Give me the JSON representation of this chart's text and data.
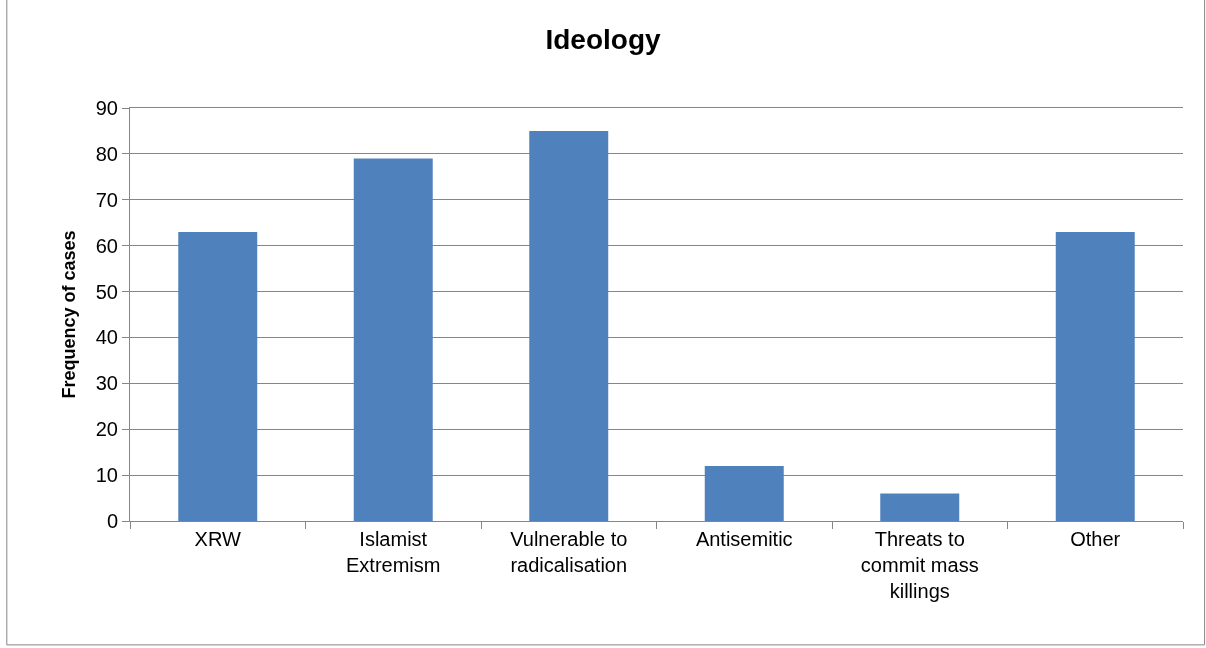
{
  "chart_data": {
    "type": "bar",
    "title": "Ideology",
    "ylabel": "Frequency of cases",
    "categories": [
      "XRW",
      "Islamist Extremism",
      "Vulnerable to radicalisation",
      "Antisemitic",
      "Threats to commit mass killings",
      "Other"
    ],
    "values": [
      63,
      79,
      85,
      12,
      6,
      63
    ],
    "color": "#4f81bd",
    "ylim": [
      0,
      90
    ],
    "yticks": [
      0,
      10,
      20,
      30,
      40,
      50,
      60,
      70,
      80,
      90
    ],
    "grid": "y"
  }
}
